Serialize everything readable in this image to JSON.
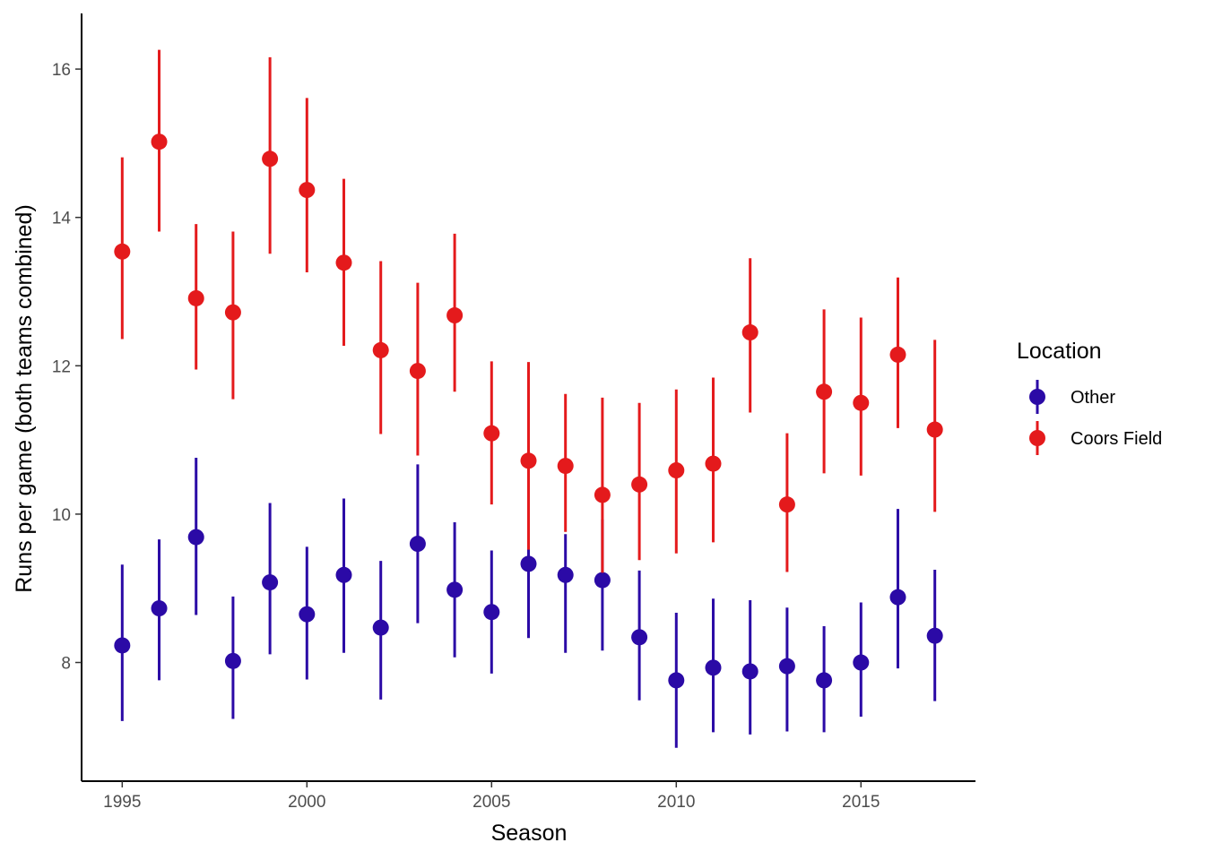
{
  "chart_data": {
    "type": "scatter",
    "xlabel": "Season",
    "ylabel": "Runs per game (both teams combined)",
    "xlim": [
      1993.9,
      2018.1
    ],
    "ylim": [
      6.4,
      16.75
    ],
    "x_ticks": [
      1995,
      2000,
      2005,
      2010,
      2015
    ],
    "y_ticks": [
      8,
      10,
      12,
      14,
      16
    ],
    "grid": false,
    "legend_title": "Location",
    "legend_position": "right",
    "x": [
      1995,
      1996,
      1997,
      1998,
      1999,
      2000,
      2001,
      2002,
      2003,
      2004,
      2005,
      2006,
      2007,
      2008,
      2009,
      2010,
      2011,
      2012,
      2013,
      2014,
      2015,
      2016,
      2017
    ],
    "series": [
      {
        "name": "Other",
        "color": "#2b0aa6",
        "values": [
          8.23,
          8.73,
          9.69,
          8.02,
          9.08,
          8.65,
          9.18,
          8.47,
          9.6,
          8.98,
          8.68,
          9.33,
          9.18,
          9.11,
          8.34,
          7.76,
          7.93,
          7.88,
          7.95,
          7.76,
          8.0,
          8.88,
          8.36
        ],
        "lower": [
          7.21,
          7.76,
          8.64,
          7.24,
          8.11,
          7.77,
          8.13,
          7.5,
          8.53,
          8.07,
          7.85,
          8.33,
          8.13,
          8.16,
          7.49,
          6.85,
          7.06,
          7.03,
          7.07,
          7.06,
          7.27,
          7.92,
          7.48
        ],
        "upper": [
          9.32,
          9.66,
          10.76,
          8.89,
          10.15,
          9.56,
          10.21,
          9.37,
          10.67,
          9.89,
          9.51,
          10.38,
          9.73,
          9.93,
          9.24,
          8.67,
          8.86,
          8.84,
          8.74,
          8.49,
          8.81,
          10.07,
          9.25
        ]
      },
      {
        "name": "Coors Field",
        "color": "#e41a1c",
        "values": [
          13.54,
          15.02,
          12.91,
          12.72,
          14.79,
          14.37,
          13.39,
          12.21,
          11.93,
          12.68,
          11.09,
          10.72,
          10.65,
          10.26,
          10.4,
          10.59,
          10.68,
          12.45,
          10.13,
          11.65,
          11.5,
          12.15,
          11.14
        ],
        "lower": [
          12.36,
          13.81,
          11.95,
          11.55,
          13.51,
          13.26,
          12.27,
          11.08,
          10.79,
          11.65,
          10.13,
          9.52,
          9.76,
          9.21,
          9.38,
          9.47,
          9.62,
          11.37,
          9.22,
          10.55,
          10.52,
          11.16,
          10.03
        ],
        "upper": [
          14.81,
          16.26,
          13.91,
          13.81,
          16.16,
          15.61,
          14.52,
          13.41,
          13.12,
          13.78,
          12.06,
          12.05,
          11.62,
          11.57,
          11.5,
          11.68,
          11.84,
          13.45,
          11.09,
          12.76,
          12.65,
          13.19,
          12.35
        ]
      }
    ]
  }
}
